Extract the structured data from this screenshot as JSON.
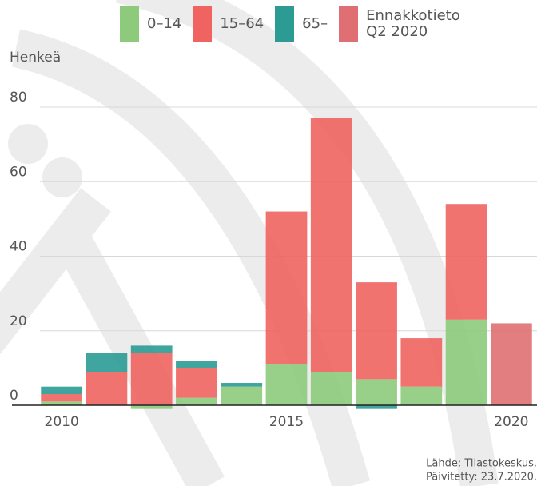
{
  "chart_data": {
    "type": "bar",
    "stacked": true,
    "y_label": "Henkeä",
    "source": "Lähde: Tilastokeskus.",
    "updated": "Päivitetty: 23.7.2020.",
    "x": [
      2010,
      2011,
      2012,
      2013,
      2014,
      2015,
      2016,
      2017,
      2018,
      2019,
      2020
    ],
    "series": [
      {
        "name": "0–14",
        "color": "#8dca7c",
        "values": [
          1,
          0,
          -1,
          2,
          5,
          11,
          9,
          7,
          5,
          23,
          null
        ]
      },
      {
        "name": "15–64",
        "color": "#ef6461",
        "values": [
          2,
          9,
          14,
          8,
          0,
          41,
          68,
          26,
          13,
          31,
          null
        ]
      },
      {
        "name": "65–",
        "color": "#2b9b94",
        "values": [
          2,
          5,
          2,
          2,
          1,
          0,
          0,
          -1,
          0,
          0,
          null
        ]
      },
      {
        "name": "Ennakkotieto Q2 2020",
        "color": "#df6f72",
        "values": [
          null,
          null,
          null,
          null,
          null,
          null,
          null,
          null,
          null,
          null,
          22
        ]
      }
    ],
    "xlim": [
      2009.5,
      2020.5
    ],
    "xticks": [
      2010,
      2015,
      2020
    ],
    "ylim": [
      0,
      80
    ],
    "yticks": [
      0,
      20,
      40,
      60,
      80
    ],
    "grid": true
  }
}
